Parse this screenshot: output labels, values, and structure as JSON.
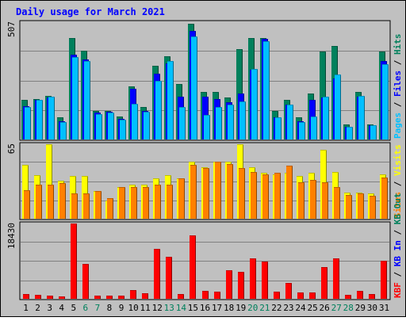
{
  "chart_data": {
    "type": "bar",
    "title": "Daily usage for March 2021",
    "days": [
      "1",
      "2",
      "3",
      "4",
      "5",
      "6",
      "7",
      "8",
      "9",
      "10",
      "11",
      "12",
      "13",
      "14",
      "15",
      "16",
      "17",
      "18",
      "19",
      "20",
      "21",
      "22",
      "23",
      "24",
      "25",
      "26",
      "27",
      "28",
      "29",
      "30",
      "31"
    ],
    "weekend_days": [
      "6",
      "7",
      "13",
      "14",
      "20",
      "21",
      "27",
      "28"
    ],
    "colors": {
      "background": "#c0c0c0",
      "title": "#0000ff",
      "hits": "#00805c",
      "files": "#0000ff",
      "pages": "#00c0ff",
      "visits": "#ffff00",
      "sites": "#ff8000",
      "kb_in": "#0000ff",
      "kb_out": "#00805c",
      "kbf": "#ff0000",
      "weekend_day": "#00805c",
      "weekday": "#000000"
    },
    "panels": [
      {
        "max_label": "507",
        "ylim": [
          0,
          507
        ],
        "side_label_parts": [
          {
            "text": "Pages",
            "color": "#00c0ff"
          },
          {
            "text": " / ",
            "color": "#000000"
          },
          {
            "text": "Files",
            "color": "#0000ff"
          },
          {
            "text": " / ",
            "color": "#000000"
          },
          {
            "text": "Hits",
            "color": "#00805c"
          }
        ],
        "series": [
          {
            "name": "Hits",
            "color": "#00805c",
            "values": [
              170,
              175,
              190,
              95,
              440,
              385,
              125,
              125,
              100,
              230,
              140,
              320,
              360,
              240,
              500,
              205,
              205,
              180,
              390,
              440,
              440,
              125,
              170,
              95,
              200,
              380,
              405,
              65,
              205,
              65,
              380
            ]
          },
          {
            "name": "Files",
            "color": "#0000ff",
            "values": [
              145,
              170,
              180,
              80,
              365,
              345,
              115,
              120,
              90,
              220,
              125,
              285,
              330,
              185,
              470,
              185,
              175,
              160,
              200,
              300,
              435,
              95,
              150,
              80,
              170,
              180,
              265,
              55,
              185,
              60,
              340
            ]
          },
          {
            "name": "Pages",
            "color": "#00c0ff",
            "values": [
              140,
              170,
              185,
              75,
              355,
              340,
              110,
              115,
              85,
              155,
              120,
              255,
              340,
              140,
              445,
              105,
              140,
              150,
              165,
              305,
              425,
              95,
              150,
              75,
              100,
              185,
              280,
              55,
              190,
              60,
              325
            ]
          }
        ]
      },
      {
        "max_label": "65",
        "ylim": [
          0,
          65
        ],
        "side_label_parts": [
          {
            "text": "Sites",
            "color": "#ff8000"
          },
          {
            "text": " / ",
            "color": "#000000"
          },
          {
            "text": "Visits",
            "color": "#ffff00"
          }
        ],
        "series": [
          {
            "name": "Visits",
            "color": "#ffff00",
            "values": [
              47,
              38,
              65,
              33,
              37,
              37,
              24,
              16,
              28,
              30,
              30,
              35,
              38,
              35,
              50,
              45,
              50,
              50,
              65,
              45,
              40,
              39,
              40,
              37,
              40,
              60,
              41,
              23,
              23,
              22,
              39
            ]
          },
          {
            "name": "Sites",
            "color": "#ff8000",
            "values": [
              25,
              30,
              30,
              31,
              22,
              22,
              24,
              18,
              28,
              28,
              28,
              30,
              30,
              35,
              47,
              44,
              50,
              48,
              44,
              41,
              39,
              40,
              46,
              32,
              34,
              32,
              28,
              21,
              22,
              20,
              36
            ]
          }
        ]
      },
      {
        "max_label": "18430",
        "ylim": [
          0,
          18430
        ],
        "side_label_parts": [
          {
            "text": "KBF",
            "color": "#ff0000"
          },
          {
            "text": " / ",
            "color": "#000000"
          },
          {
            "text": "KB In",
            "color": "#0000ff"
          },
          {
            "text": " / ",
            "color": "#000000"
          },
          {
            "text": "KB Out",
            "color": "#00805c"
          }
        ],
        "series": [
          {
            "name": "KBF",
            "color": "#ff0000",
            "values": [
              1200,
              1000,
              700,
              500,
              18430,
              8500,
              700,
              700,
              700,
              2100,
              1400,
              12300,
              10300,
              1200,
              15600,
              2000,
              1800,
              7000,
              6500,
              9800,
              9200,
              1800,
              3800,
              1600,
              1600,
              7800,
              9900,
              1000,
              1900,
              1200,
              9400
            ]
          }
        ]
      }
    ]
  }
}
